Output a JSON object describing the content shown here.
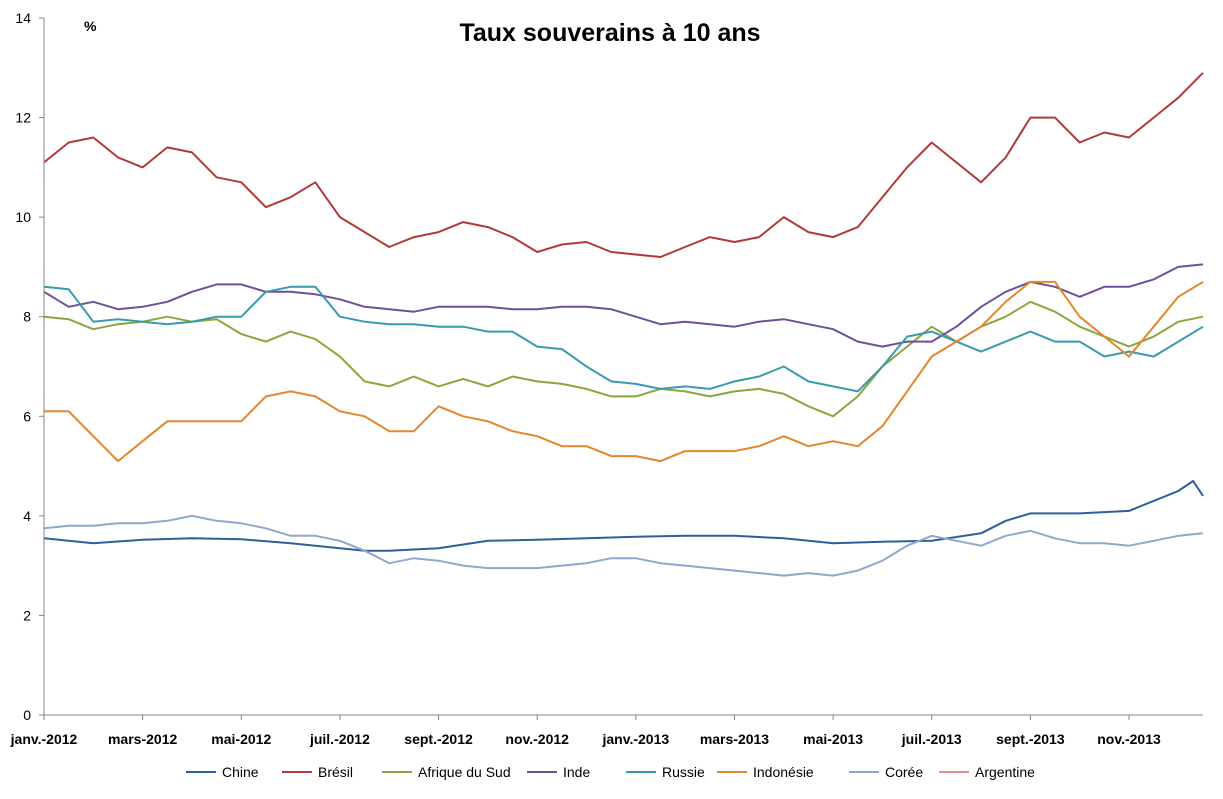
{
  "chart_data": {
    "type": "line",
    "title": "Taux souverains à 10 ans",
    "ylabel": "%",
    "xlabel": "",
    "ylim": [
      0,
      14
    ],
    "yticks": [
      0,
      2,
      4,
      6,
      8,
      10,
      12,
      14
    ],
    "x_range_months": [
      0,
      23.5
    ],
    "x_ticks": [
      {
        "label": "janv.-2012",
        "month": 0
      },
      {
        "label": "mars-2012",
        "month": 2
      },
      {
        "label": "mai-2012",
        "month": 4
      },
      {
        "label": "juil.-2012",
        "month": 6
      },
      {
        "label": "sept.-2012",
        "month": 8
      },
      {
        "label": "nov.-2012",
        "month": 10
      },
      {
        "label": "janv.-2013",
        "month": 12
      },
      {
        "label": "mars-2013",
        "month": 14
      },
      {
        "label": "mai-2013",
        "month": 16
      },
      {
        "label": "juil.-2013",
        "month": 18
      },
      {
        "label": "sept.-2013",
        "month": 20
      },
      {
        "label": "nov.-2013",
        "month": 22
      }
    ],
    "legend_position": "bottom",
    "series": [
      {
        "name": "Chine",
        "color": "#2e5f9a",
        "x": [
          0,
          1,
          2,
          3,
          4,
          5,
          6,
          6.5,
          7,
          8,
          9,
          10,
          11,
          12,
          13,
          14,
          15,
          16,
          17,
          18,
          19,
          19.5,
          20,
          21,
          22,
          22.5,
          23,
          23.3,
          23.5
        ],
        "values": [
          3.55,
          3.45,
          3.52,
          3.55,
          3.53,
          3.45,
          3.35,
          3.3,
          3.3,
          3.35,
          3.5,
          3.52,
          3.55,
          3.58,
          3.6,
          3.6,
          3.55,
          3.45,
          3.48,
          3.5,
          3.65,
          3.9,
          4.05,
          4.05,
          4.1,
          4.3,
          4.5,
          4.7,
          4.4
        ]
      },
      {
        "name": "Brésil",
        "color": "#b03a38",
        "x": [
          0,
          0.5,
          1,
          1.5,
          2,
          2.5,
          3,
          3.5,
          4,
          4.5,
          5,
          5.5,
          6,
          6.5,
          7,
          7.5,
          8,
          8.5,
          9,
          9.5,
          10,
          10.5,
          11,
          11.5,
          12,
          12.5,
          13,
          13.5,
          14,
          14.5,
          15,
          15.5,
          16,
          16.5,
          17,
          17.5,
          18,
          18.5,
          19,
          19.5,
          20,
          20.5,
          21,
          21.5,
          22,
          22.5,
          23,
          23.5
        ],
        "values": [
          11.1,
          11.5,
          11.6,
          11.2,
          11.0,
          11.4,
          11.3,
          10.8,
          10.7,
          10.2,
          10.4,
          10.7,
          10.0,
          9.7,
          9.4,
          9.6,
          9.7,
          9.9,
          9.8,
          9.6,
          9.3,
          9.45,
          9.5,
          9.3,
          9.25,
          9.2,
          9.4,
          9.6,
          9.5,
          9.6,
          10.0,
          9.7,
          9.6,
          9.8,
          10.4,
          11.0,
          11.5,
          11.1,
          10.7,
          11.2,
          12.0,
          12.0,
          11.5,
          11.7,
          11.6,
          12.0,
          12.4,
          12.9
        ]
      },
      {
        "name": "Afrique du Sud",
        "color": "#8aa63f",
        "x": [
          0,
          0.5,
          1,
          1.5,
          2,
          2.5,
          3,
          3.5,
          4,
          4.5,
          5,
          5.5,
          6,
          6.5,
          7,
          7.5,
          8,
          8.5,
          9,
          9.5,
          10,
          10.5,
          11,
          11.5,
          12,
          12.5,
          13,
          13.5,
          14,
          14.5,
          15,
          15.5,
          16,
          16.5,
          17,
          17.5,
          18,
          18.5,
          19,
          19.5,
          20,
          20.5,
          21,
          21.5,
          22,
          22.5,
          23,
          23.5
        ],
        "values": [
          8.0,
          7.95,
          7.75,
          7.85,
          7.9,
          8.0,
          7.9,
          7.95,
          7.65,
          7.5,
          7.7,
          7.55,
          7.2,
          6.7,
          6.6,
          6.8,
          6.6,
          6.75,
          6.6,
          6.8,
          6.7,
          6.65,
          6.55,
          6.4,
          6.4,
          6.55,
          6.5,
          6.4,
          6.5,
          6.55,
          6.45,
          6.2,
          6.0,
          6.4,
          7.0,
          7.4,
          7.8,
          7.5,
          7.8,
          8.0,
          8.3,
          8.1,
          7.8,
          7.6,
          7.4,
          7.6,
          7.9,
          8.0
        ]
      },
      {
        "name": "Inde",
        "color": "#6e5098",
        "x": [
          0,
          0.5,
          1,
          1.5,
          2,
          2.5,
          3,
          3.5,
          4,
          4.5,
          5,
          5.5,
          6,
          6.5,
          7,
          7.5,
          8,
          8.5,
          9,
          9.5,
          10,
          10.5,
          11,
          11.5,
          12,
          12.5,
          13,
          13.5,
          14,
          14.5,
          15,
          15.5,
          16,
          16.5,
          17,
          17.5,
          18,
          18.5,
          19,
          19.5,
          20,
          20.5,
          21,
          21.5,
          22,
          22.5,
          23,
          23.5
        ],
        "values": [
          8.5,
          8.2,
          8.3,
          8.15,
          8.2,
          8.3,
          8.5,
          8.65,
          8.65,
          8.5,
          8.5,
          8.45,
          8.35,
          8.2,
          8.15,
          8.1,
          8.2,
          8.2,
          8.2,
          8.15,
          8.15,
          8.2,
          8.2,
          8.15,
          8.0,
          7.85,
          7.9,
          7.85,
          7.8,
          7.9,
          7.95,
          7.85,
          7.75,
          7.5,
          7.4,
          7.5,
          7.5,
          7.8,
          8.2,
          8.5,
          8.7,
          8.6,
          8.4,
          8.6,
          8.6,
          8.75,
          9.0,
          9.05
        ]
      },
      {
        "name": "Russie",
        "color": "#3a9ab0",
        "x": [
          0,
          0.5,
          1,
          1.5,
          2,
          2.5,
          3,
          3.5,
          4,
          4.5,
          5,
          5.5,
          6,
          6.5,
          7,
          7.5,
          8,
          8.5,
          9,
          9.5,
          10,
          10.5,
          11,
          11.5,
          12,
          12.5,
          13,
          13.5,
          14,
          14.5,
          15,
          15.5,
          16,
          16.5,
          17,
          17.5,
          18,
          18.5,
          19,
          19.5,
          20,
          20.5,
          21,
          21.5,
          22,
          22.5,
          23,
          23.5
        ],
        "values": [
          8.6,
          8.55,
          7.9,
          7.95,
          7.9,
          7.85,
          7.9,
          8.0,
          8.0,
          8.5,
          8.6,
          8.6,
          8.0,
          7.9,
          7.85,
          7.85,
          7.8,
          7.8,
          7.7,
          7.7,
          7.4,
          7.35,
          7.0,
          6.7,
          6.65,
          6.55,
          6.6,
          6.55,
          6.7,
          6.8,
          7.0,
          6.7,
          6.6,
          6.5,
          7.0,
          7.6,
          7.7,
          7.5,
          7.3,
          7.5,
          7.7,
          7.5,
          7.5,
          7.2,
          7.3,
          7.2,
          7.5,
          7.8
        ]
      },
      {
        "name": "Indonésie",
        "color": "#e5862b",
        "x": [
          0,
          0.5,
          1,
          1.5,
          2,
          2.5,
          3,
          3.5,
          4,
          4.5,
          5,
          5.5,
          6,
          6.5,
          7,
          7.5,
          8,
          8.5,
          9,
          9.5,
          10,
          10.5,
          11,
          11.5,
          12,
          12.5,
          13,
          13.5,
          14,
          14.5,
          15,
          15.5,
          16,
          16.5,
          17,
          17.5,
          18,
          18.5,
          19,
          19.5,
          20,
          20.5,
          21,
          21.5,
          22,
          22.5,
          23,
          23.5
        ],
        "values": [
          6.1,
          6.1,
          5.6,
          5.1,
          5.5,
          5.9,
          5.9,
          5.9,
          5.9,
          6.4,
          6.5,
          6.4,
          6.1,
          6.0,
          5.7,
          5.7,
          6.2,
          6.0,
          5.9,
          5.7,
          5.6,
          5.4,
          5.4,
          5.2,
          5.2,
          5.1,
          5.3,
          5.3,
          5.3,
          5.4,
          5.6,
          5.4,
          5.5,
          5.4,
          5.8,
          6.5,
          7.2,
          7.5,
          7.8,
          8.3,
          8.7,
          8.7,
          8.0,
          7.6,
          7.2,
          7.8,
          8.4,
          8.7
        ]
      },
      {
        "name": "Corée",
        "color": "#8ea8cc",
        "x": [
          0,
          0.5,
          1,
          1.5,
          2,
          2.5,
          3,
          3.5,
          4,
          4.5,
          5,
          5.5,
          6,
          6.5,
          7,
          7.5,
          8,
          8.5,
          9,
          9.5,
          10,
          10.5,
          11,
          11.5,
          12,
          12.5,
          13,
          13.5,
          14,
          14.5,
          15,
          15.5,
          16,
          16.5,
          17,
          17.5,
          18,
          18.5,
          19,
          19.5,
          20,
          20.5,
          21,
          21.5,
          22,
          22.5,
          23,
          23.5
        ],
        "values": [
          3.75,
          3.8,
          3.8,
          3.85,
          3.85,
          3.9,
          4.0,
          3.9,
          3.85,
          3.75,
          3.6,
          3.6,
          3.5,
          3.3,
          3.05,
          3.15,
          3.1,
          3.0,
          2.95,
          2.95,
          2.95,
          3.0,
          3.05,
          3.15,
          3.15,
          3.05,
          3.0,
          2.95,
          2.9,
          2.85,
          2.8,
          2.85,
          2.8,
          2.9,
          3.1,
          3.4,
          3.6,
          3.5,
          3.4,
          3.6,
          3.7,
          3.55,
          3.45,
          3.45,
          3.4,
          3.5,
          3.6,
          3.65
        ]
      },
      {
        "name": "Argentine",
        "color": "#e98c8a",
        "x": [],
        "values": []
      }
    ]
  }
}
